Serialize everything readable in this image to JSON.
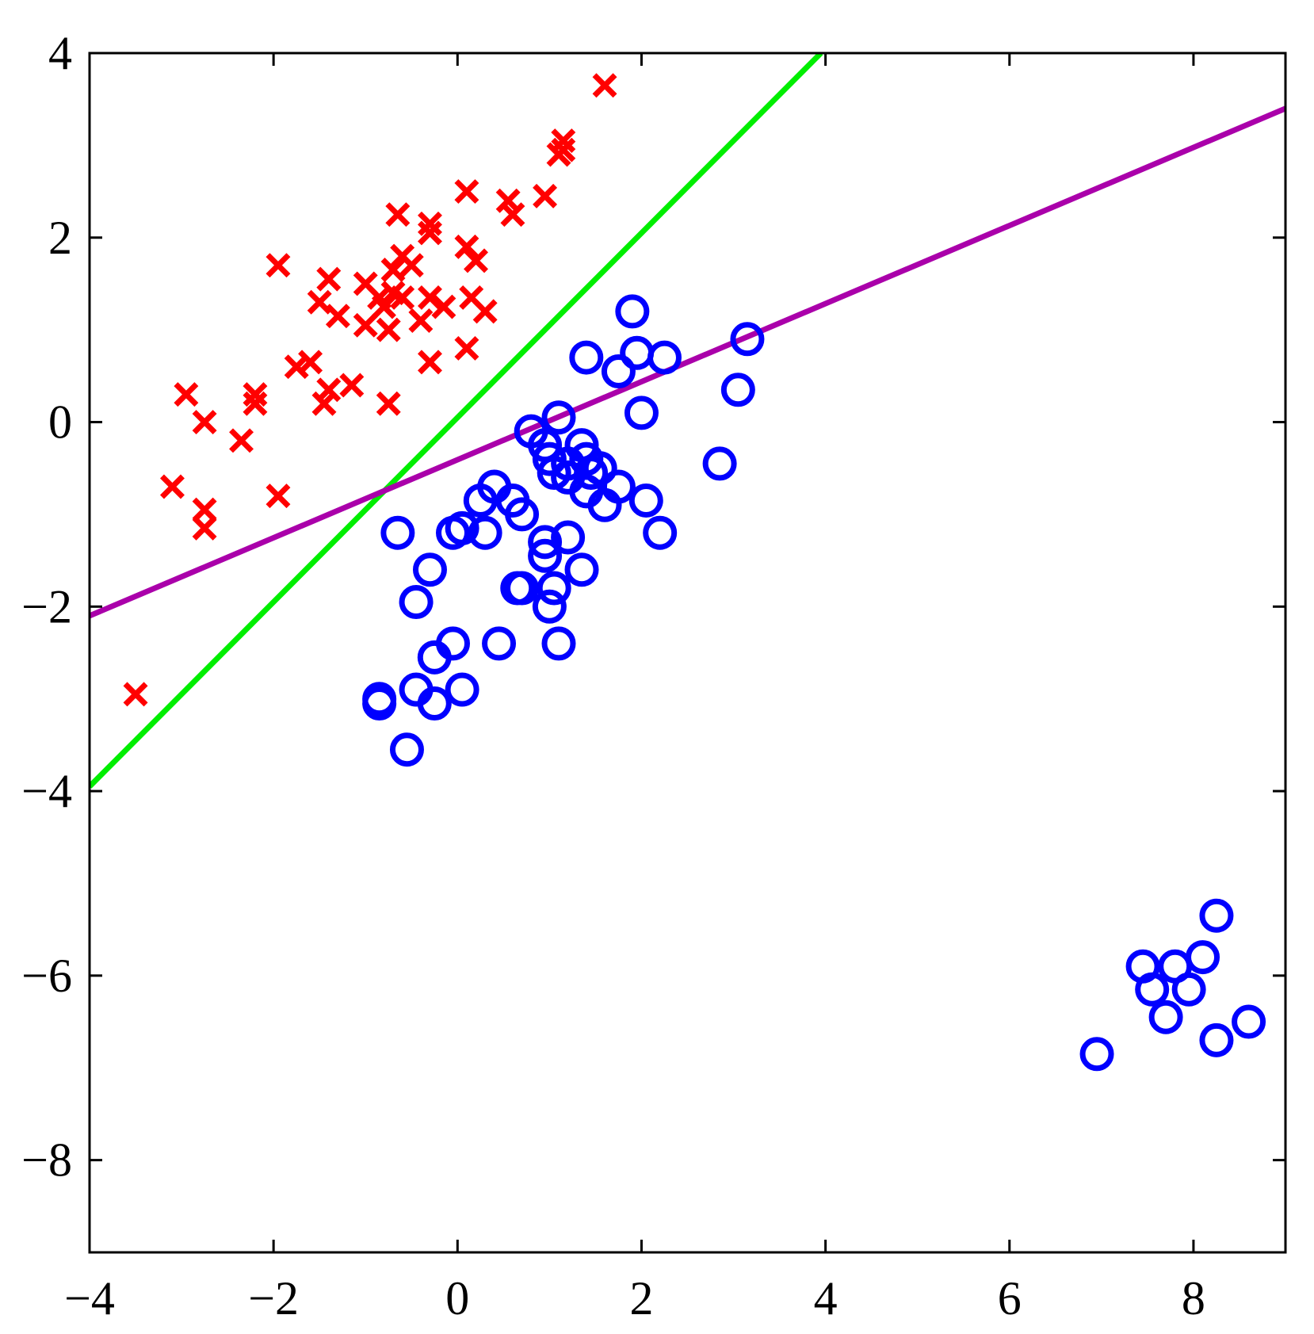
{
  "chart_data": {
    "type": "scatter",
    "title": "",
    "xlabel": "",
    "ylabel": "",
    "xlim": [
      -4,
      9
    ],
    "ylim": [
      -9,
      4
    ],
    "grid": false,
    "xticks": [
      -4,
      -2,
      0,
      2,
      4,
      6,
      8
    ],
    "yticks": [
      4,
      2,
      0,
      -2,
      -4,
      -6,
      -8
    ],
    "xtick_labels": [
      "−4",
      "−2",
      "0",
      "2",
      "4",
      "6",
      "8"
    ],
    "ytick_labels": [
      "4",
      "2",
      "0",
      "−2",
      "−4",
      "−6",
      "−8"
    ],
    "series": [
      {
        "marker": "x",
        "color": "#ff0000",
        "points": [
          [
            1.6,
            3.65
          ],
          [
            1.15,
            3.05
          ],
          [
            1.15,
            2.95
          ],
          [
            1.1,
            2.9
          ],
          [
            0.95,
            2.45
          ],
          [
            0.1,
            2.5
          ],
          [
            0.55,
            2.4
          ],
          [
            0.6,
            2.25
          ],
          [
            -0.65,
            2.25
          ],
          [
            -0.3,
            2.15
          ],
          [
            -0.3,
            2.05
          ],
          [
            0.1,
            1.9
          ],
          [
            0.2,
            1.75
          ],
          [
            -0.6,
            1.8
          ],
          [
            -0.5,
            1.7
          ],
          [
            -0.7,
            1.65
          ],
          [
            -1.95,
            1.7
          ],
          [
            -1.4,
            1.55
          ],
          [
            -1.0,
            1.5
          ],
          [
            -0.85,
            1.35
          ],
          [
            -0.7,
            1.4
          ],
          [
            -0.6,
            1.35
          ],
          [
            -0.3,
            1.35
          ],
          [
            0.15,
            1.35
          ],
          [
            -1.5,
            1.3
          ],
          [
            -0.8,
            1.25
          ],
          [
            -0.15,
            1.25
          ],
          [
            0.3,
            1.2
          ],
          [
            -1.3,
            1.15
          ],
          [
            -0.4,
            1.1
          ],
          [
            -1.0,
            1.05
          ],
          [
            -0.75,
            1.0
          ],
          [
            0.1,
            0.8
          ],
          [
            -0.3,
            0.65
          ],
          [
            -1.75,
            0.6
          ],
          [
            -1.6,
            0.65
          ],
          [
            -1.15,
            0.4
          ],
          [
            -1.4,
            0.35
          ],
          [
            -1.45,
            0.2
          ],
          [
            -2.2,
            0.3
          ],
          [
            -2.2,
            0.2
          ],
          [
            -2.95,
            0.3
          ],
          [
            -0.75,
            0.2
          ],
          [
            -2.75,
            0.0
          ],
          [
            -2.35,
            -0.2
          ],
          [
            -3.1,
            -0.7
          ],
          [
            -1.95,
            -0.8
          ],
          [
            -2.75,
            -0.95
          ],
          [
            -2.75,
            -1.15
          ],
          [
            -3.5,
            -2.95
          ]
        ]
      },
      {
        "marker": "o",
        "color": "#0000ff",
        "points": [
          [
            1.9,
            1.2
          ],
          [
            3.15,
            0.9
          ],
          [
            1.4,
            0.7
          ],
          [
            1.95,
            0.75
          ],
          [
            2.25,
            0.7
          ],
          [
            1.75,
            0.55
          ],
          [
            3.05,
            0.35
          ],
          [
            2.0,
            0.1
          ],
          [
            1.1,
            0.05
          ],
          [
            0.8,
            -0.1
          ],
          [
            0.95,
            -0.25
          ],
          [
            1.35,
            -0.25
          ],
          [
            1.0,
            -0.4
          ],
          [
            1.2,
            -0.45
          ],
          [
            1.4,
            -0.4
          ],
          [
            1.55,
            -0.5
          ],
          [
            1.05,
            -0.55
          ],
          [
            1.2,
            -0.6
          ],
          [
            1.45,
            -0.55
          ],
          [
            2.85,
            -0.45
          ],
          [
            1.75,
            -0.7
          ],
          [
            1.4,
            -0.75
          ],
          [
            0.4,
            -0.7
          ],
          [
            0.25,
            -0.85
          ],
          [
            0.6,
            -0.85
          ],
          [
            0.7,
            -1.0
          ],
          [
            1.6,
            -0.9
          ],
          [
            2.05,
            -0.85
          ],
          [
            -0.65,
            -1.2
          ],
          [
            -0.05,
            -1.2
          ],
          [
            0.05,
            -1.15
          ],
          [
            0.3,
            -1.2
          ],
          [
            0.95,
            -1.3
          ],
          [
            1.2,
            -1.25
          ],
          [
            2.2,
            -1.2
          ],
          [
            0.95,
            -1.45
          ],
          [
            -0.3,
            -1.6
          ],
          [
            1.35,
            -1.6
          ],
          [
            0.65,
            -1.8
          ],
          [
            0.7,
            -1.8
          ],
          [
            1.05,
            -1.8
          ],
          [
            1.0,
            -2.0
          ],
          [
            -0.45,
            -1.95
          ],
          [
            -0.05,
            -2.4
          ],
          [
            0.45,
            -2.4
          ],
          [
            1.1,
            -2.4
          ],
          [
            -0.25,
            -2.55
          ],
          [
            -0.45,
            -2.9
          ],
          [
            0.05,
            -2.9
          ],
          [
            -0.85,
            -3.0
          ],
          [
            -0.85,
            -3.05
          ],
          [
            -0.25,
            -3.05
          ],
          [
            -0.55,
            -3.55
          ],
          [
            8.25,
            -5.35
          ],
          [
            8.1,
            -5.8
          ],
          [
            7.45,
            -5.9
          ],
          [
            7.8,
            -5.9
          ],
          [
            7.55,
            -6.15
          ],
          [
            7.95,
            -6.15
          ],
          [
            7.7,
            -6.45
          ],
          [
            8.6,
            -6.5
          ],
          [
            8.25,
            -6.7
          ],
          [
            6.95,
            -6.85
          ]
        ]
      }
    ],
    "lines": [
      {
        "color": "#00ee00",
        "x": [
          -4,
          3.95
        ],
        "y": [
          -3.95,
          4.0
        ]
      },
      {
        "color": "#aa00aa",
        "x": [
          -4,
          9
        ],
        "y": [
          -2.1,
          3.4
        ]
      }
    ]
  }
}
